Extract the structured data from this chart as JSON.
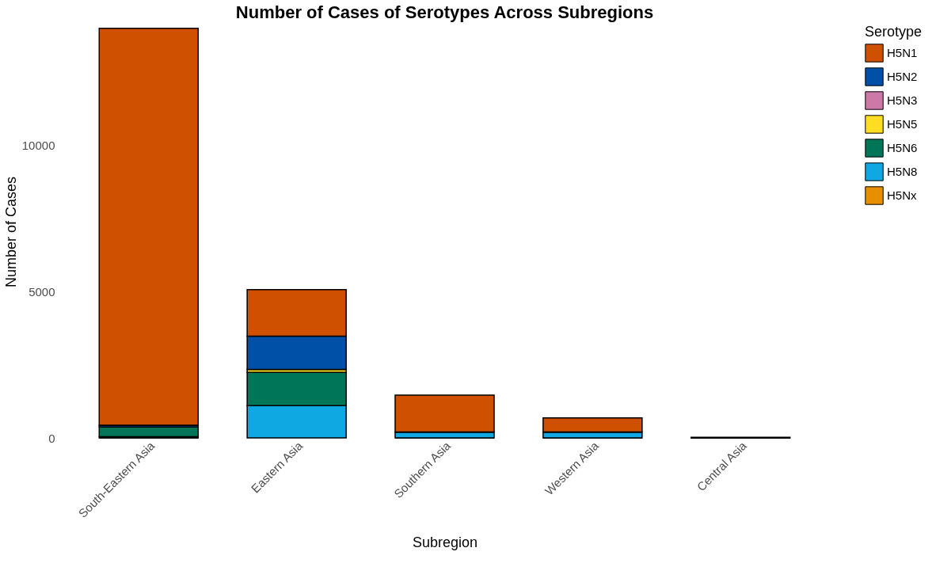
{
  "chart_data": {
    "type": "bar",
    "title": "Number of Cases of Serotypes Across Subregions",
    "xlabel": "Subregion",
    "ylabel": "Number of Cases",
    "legend_title": "Serotype",
    "categories": [
      "South-Eastern Asia",
      "Eastern Asia",
      "Southern Asia",
      "Western Asia",
      "Central Asia"
    ],
    "stacked": true,
    "legend": "right",
    "grid": false,
    "ylim": [
      0,
      14100
    ],
    "yticks": [
      0,
      5000,
      10000
    ],
    "series": [
      {
        "name": "H5Nx",
        "color": "#E69000",
        "values": [
          0,
          null,
          0,
          0,
          0
        ]
      },
      {
        "name": "H5N8",
        "color": "#10A8E2",
        "values": [
          40,
          1100,
          200,
          200,
          0
        ]
      },
      {
        "name": "H5N6",
        "color": "#007558",
        "values": [
          330,
          1140,
          0,
          0,
          0
        ]
      },
      {
        "name": "H5N5",
        "color": "#FFDD22",
        "values": [
          0,
          100,
          0,
          0,
          0
        ]
      },
      {
        "name": "H5N3",
        "color": "#CC79A7",
        "values": [
          0,
          0,
          0,
          0,
          0
        ]
      },
      {
        "name": "H5N2",
        "color": "#0050A8",
        "values": [
          60,
          1140,
          0,
          0,
          0
        ]
      },
      {
        "name": "H5N1",
        "color": "#CF5000",
        "values": [
          13570,
          1590,
          1260,
          480,
          20
        ]
      }
    ]
  }
}
